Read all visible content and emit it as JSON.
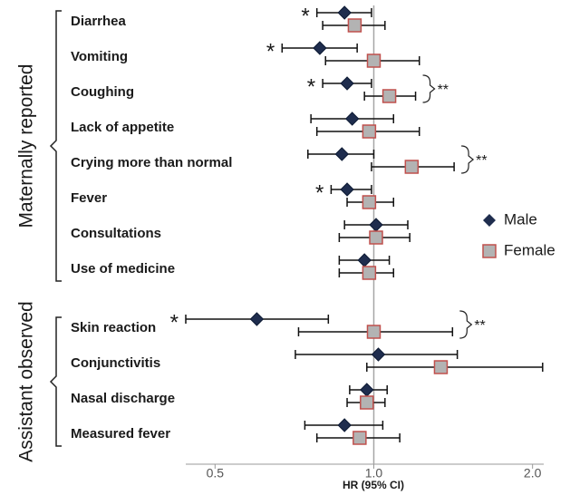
{
  "chart_data": {
    "type": "forest",
    "xlabel": "HR (95% CI)",
    "xscale": "log",
    "xlim": [
      0.44,
      2.1
    ],
    "xticks": [
      0.5,
      {
        "value": 1,
        "label": "1.0"
      },
      {
        "value": 2,
        "label": "2.0"
      }
    ],
    "groups": [
      {
        "name": "Maternally reported",
        "categories": [
          "Diarrhea",
          "Vomiting",
          "Coughing",
          "Lack of appetite",
          "Crying more than normal",
          "Fever",
          "Consultations",
          "Use of medicine"
        ]
      },
      {
        "name": "Assistant observed",
        "categories": [
          "Skin reaction",
          "Conjunctivitis",
          "Nasal discharge",
          "Measured fever"
        ]
      }
    ],
    "series": [
      {
        "name": "Male",
        "marker": "diamond",
        "color": "#1f2d4e",
        "values": [
          0.88,
          0.79,
          0.89,
          0.91,
          0.87,
          0.89,
          1.01,
          0.96,
          0.6,
          1.02,
          0.97,
          0.88
        ],
        "lower": [
          0.78,
          0.67,
          0.8,
          0.76,
          0.75,
          0.83,
          0.88,
          0.86,
          0.44,
          0.71,
          0.9,
          0.74
        ],
        "upper": [
          0.99,
          0.93,
          0.99,
          1.09,
          1.0,
          0.99,
          1.16,
          1.07,
          0.82,
          1.44,
          1.06,
          1.04
        ],
        "significance": [
          "*",
          "*",
          "*",
          null,
          null,
          "*",
          null,
          null,
          "*",
          null,
          null,
          null
        ]
      },
      {
        "name": "Female",
        "marker": "square",
        "color": "#b3b3b3",
        "edge_color": "#c0504d",
        "values": [
          0.92,
          1.0,
          1.07,
          0.98,
          1.18,
          0.98,
          1.01,
          0.98,
          1.0,
          1.34,
          0.97,
          0.94
        ],
        "lower": [
          0.8,
          0.81,
          0.96,
          0.78,
          0.99,
          0.89,
          0.86,
          0.86,
          0.72,
          0.97,
          0.89,
          0.78
        ],
        "upper": [
          1.05,
          1.22,
          1.2,
          1.22,
          1.42,
          1.09,
          1.17,
          1.09,
          1.41,
          2.09,
          1.05,
          1.12
        ]
      }
    ],
    "sex_difference": [
      null,
      null,
      "**",
      null,
      "**",
      null,
      null,
      null,
      "**",
      null,
      null,
      null
    ]
  }
}
